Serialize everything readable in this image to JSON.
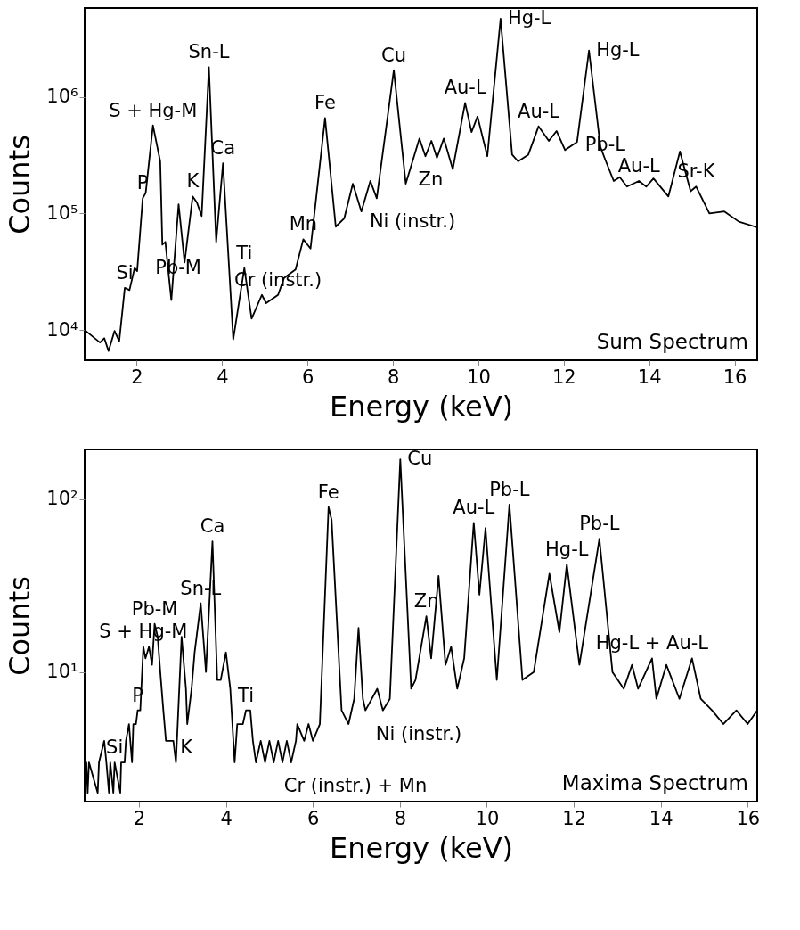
{
  "chart_data": [
    {
      "type": "line",
      "xlabel": "Energy (keV)",
      "ylabel": "Counts",
      "log": true,
      "grid": false,
      "marker": "none",
      "line_style": "solid",
      "xlim": [
        0.78,
        16.53
      ],
      "xticks": [
        2,
        4,
        6,
        8,
        10,
        12,
        14,
        16
      ],
      "ylim": [
        5500,
        5800000
      ],
      "yticks": [
        {
          "value": 10000,
          "label": "10⁴"
        },
        {
          "value": 100000,
          "label": "10⁵"
        },
        {
          "value": 1000000,
          "label": "10⁶"
        }
      ],
      "series": [
        {
          "color": "#000000",
          "x": [
            0.78,
            1.14,
            1.24,
            1.34,
            1.48,
            1.59,
            1.72,
            1.83,
            1.95,
            2.01,
            2.14,
            2.21,
            2.38,
            2.55,
            2.6,
            2.67,
            2.81,
            2.98,
            3.12,
            3.31,
            3.41,
            3.52,
            3.69,
            3.86,
            4.02,
            4.26,
            4.52,
            4.69,
            4.93,
            5.03,
            5.31,
            5.45,
            5.72,
            5.9,
            6.07,
            6.41,
            6.66,
            6.86,
            7.06,
            7.26,
            7.47,
            7.62,
            8.02,
            8.3,
            8.62,
            8.76,
            8.9,
            9.03,
            9.19,
            9.4,
            9.69,
            9.84,
            9.98,
            10.21,
            10.52,
            10.79,
            10.93,
            11.17,
            11.41,
            11.65,
            11.83,
            12.03,
            12.31,
            12.59,
            12.86,
            12.97,
            13.17,
            13.31,
            13.48,
            13.76,
            13.93,
            14.1,
            14.45,
            14.72,
            14.97,
            15.1,
            15.41,
            15.76,
            16.1,
            16.53
          ],
          "values": [
            10000,
            7800,
            8500,
            6600,
            9800,
            8000,
            23000,
            22000,
            34000,
            32000,
            135000,
            150000,
            570000,
            280000,
            54000,
            57000,
            18000,
            120000,
            38000,
            140000,
            124000,
            95000,
            1800000,
            57000,
            270000,
            8300,
            34000,
            12500,
            20000,
            17000,
            20000,
            28000,
            33000,
            60000,
            50000,
            660000,
            77000,
            91000,
            180000,
            104000,
            190000,
            135000,
            1700000,
            180000,
            440000,
            310000,
            420000,
            300000,
            440000,
            240000,
            890000,
            500000,
            680000,
            310000,
            4700000,
            320000,
            280000,
            320000,
            560000,
            420000,
            510000,
            350000,
            410000,
            2500000,
            370000,
            290000,
            190000,
            205000,
            170000,
            190000,
            170000,
            200000,
            140000,
            340000,
            155000,
            170000,
            100000,
            104000,
            85000,
            76000
          ]
        }
      ],
      "annotations": [
        {
          "text": "S + Hg-M",
          "x": 2.38,
          "y": 570000
        },
        {
          "text": "Pb-M",
          "x": 2.6,
          "y": 54000
        },
        {
          "text": "Sn-L",
          "x": 3.69,
          "y": 1800000
        },
        {
          "text": "Ca",
          "x": 4.02,
          "y": 270000
        },
        {
          "text": "P",
          "x": 2.14,
          "y": 135000
        },
        {
          "text": "K",
          "x": 3.31,
          "y": 140000
        },
        {
          "text": "Ti",
          "x": 4.52,
          "y": 34000
        },
        {
          "text": "Si",
          "x": 1.72,
          "y": 23000
        },
        {
          "text": "Mn",
          "x": 5.9,
          "y": 60000
        },
        {
          "text": "Cr (instr.)",
          "x": 5.31,
          "y": 20000
        },
        {
          "text": "Fe",
          "x": 6.41,
          "y": 660000
        },
        {
          "text": "Cu",
          "x": 8.02,
          "y": 1700000
        },
        {
          "text": "Hg-L",
          "x": 10.52,
          "y": 4700000
        },
        {
          "text": "Au-L",
          "x": 9.69,
          "y": 890000
        },
        {
          "text": "Au-L",
          "x": 11.41,
          "y": 560000
        },
        {
          "text": "Hg-L",
          "x": 12.59,
          "y": 2500000
        },
        {
          "text": "Au-L",
          "x": 13.76,
          "y": 190000
        },
        {
          "text": "Sr-K",
          "x": 15.1,
          "y": 170000
        },
        {
          "text": "Zn",
          "x": 8.76,
          "y": 310000
        },
        {
          "text": "Pb-L",
          "x": 12.97,
          "y": 290000
        },
        {
          "text": "Ni (instr.)",
          "x": 7.62,
          "y": 135000
        },
        "Sum Spectrum"
      ]
    },
    {
      "type": "line",
      "xlabel": "Energy (keV)",
      "ylabel": "Counts",
      "log": true,
      "grid": false,
      "marker": "none",
      "line_style": "solid",
      "xlim": [
        0.75,
        16.22
      ],
      "xticks": [
        2,
        4,
        6,
        8,
        10,
        12,
        14,
        16
      ],
      "ylim": [
        1.78,
        194
      ],
      "yticks": [
        {
          "value": 10,
          "label": "10¹"
        },
        {
          "value": 100,
          "label": "10²"
        }
      ],
      "series": [
        {
          "color": "#000000",
          "x": [
            0.75,
            0.79,
            0.82,
            0.85,
            1.05,
            1.08,
            1.2,
            1.25,
            1.31,
            1.34,
            1.41,
            1.44,
            1.57,
            1.59,
            1.67,
            1.7,
            1.77,
            1.8,
            1.84,
            1.87,
            1.93,
            1.97,
            2.03,
            2.1,
            2.15,
            2.23,
            2.3,
            2.36,
            2.43,
            2.49,
            2.56,
            2.62,
            2.79,
            2.85,
            2.89,
            2.98,
            3.08,
            3.11,
            3.21,
            3.28,
            3.42,
            3.54,
            3.69,
            3.8,
            3.88,
            4.0,
            4.1,
            4.2,
            4.26,
            4.39,
            4.46,
            4.56,
            4.62,
            4.69,
            4.8,
            4.9,
            5.0,
            5.1,
            5.2,
            5.3,
            5.4,
            5.5,
            5.61,
            5.64,
            5.8,
            5.9,
            6.0,
            6.16,
            6.36,
            6.43,
            6.66,
            6.82,
            6.95,
            7.05,
            7.15,
            7.21,
            7.48,
            7.61,
            7.77,
            8.01,
            8.26,
            8.36,
            8.61,
            8.72,
            8.89,
            9.05,
            9.18,
            9.32,
            9.48,
            9.7,
            9.83,
            9.97,
            10.23,
            10.52,
            10.82,
            11.08,
            11.44,
            11.67,
            11.84,
            12.13,
            12.59,
            12.89,
            13.15,
            13.34,
            13.48,
            13.8,
            13.9,
            14.13,
            14.43,
            14.72,
            14.92,
            15.18,
            15.44,
            15.74,
            16.0,
            16.22
          ],
          "values": [
            3,
            3,
            2,
            3,
            2,
            3,
            4,
            3,
            2,
            3,
            2,
            3,
            2,
            3,
            3,
            4,
            5,
            4,
            3,
            5,
            5,
            6,
            6,
            14,
            12,
            14,
            11,
            19,
            16,
            10,
            6,
            4,
            4,
            3,
            5,
            16,
            8,
            5,
            8,
            13,
            25,
            10,
            57,
            9,
            9,
            13,
            8,
            3,
            5,
            5,
            6,
            6,
            4,
            3,
            4,
            3,
            4,
            3,
            4,
            3,
            4,
            3,
            4,
            5,
            4,
            5,
            4,
            5,
            90,
            76,
            6,
            5,
            7,
            18,
            7,
            6,
            8,
            6,
            7,
            170,
            8,
            9,
            21,
            12,
            36,
            11,
            14,
            8,
            12,
            73,
            28,
            68,
            9,
            93,
            9,
            10,
            37,
            17,
            42,
            11,
            59,
            10,
            8,
            11,
            8,
            12,
            7,
            11,
            7,
            12,
            7,
            6,
            5,
            6,
            5,
            6
          ]
        }
      ],
      "annotations": [
        {
          "text": "S + Hg-M",
          "x": 2.1,
          "y": 14
        },
        {
          "text": "Pb-M",
          "x": 2.36,
          "y": 19
        },
        {
          "text": "Ca",
          "x": 3.69,
          "y": 57
        },
        {
          "text": "P",
          "x": 1.97,
          "y": 6
        },
        {
          "text": "K",
          "x": 3.11,
          "y": 5
        },
        {
          "text": "Sn-L",
          "x": 3.42,
          "y": 25
        },
        {
          "text": "Si",
          "x": 1.44,
          "y": 3
        },
        {
          "text": "Ti",
          "x": 4.46,
          "y": 6
        },
        {
          "text": "Fe",
          "x": 6.36,
          "y": 90
        },
        {
          "text": "Cr (instr.) + Mn",
          "x": 5.5,
          "y": 3
        },
        {
          "text": "Cu",
          "x": 8.01,
          "y": 170
        },
        {
          "text": "Pb-L",
          "x": 10.52,
          "y": 93
        },
        "Maxima Spectrum",
        {
          "text": "Hg-L",
          "x": 11.84,
          "y": 42
        },
        {
          "text": "Pb-L",
          "x": 12.59,
          "y": 59
        },
        {
          "text": "Zn",
          "x": 8.61,
          "y": 21
        },
        {
          "text": "Au-L",
          "x": 9.7,
          "y": 73
        },
        {
          "text": "Ni (instr.)",
          "x": 7.61,
          "y": 6
        },
        {
          "text": "Hg-L + Au-L",
          "x": 13.8,
          "y": 12
        }
      ]
    }
  ]
}
